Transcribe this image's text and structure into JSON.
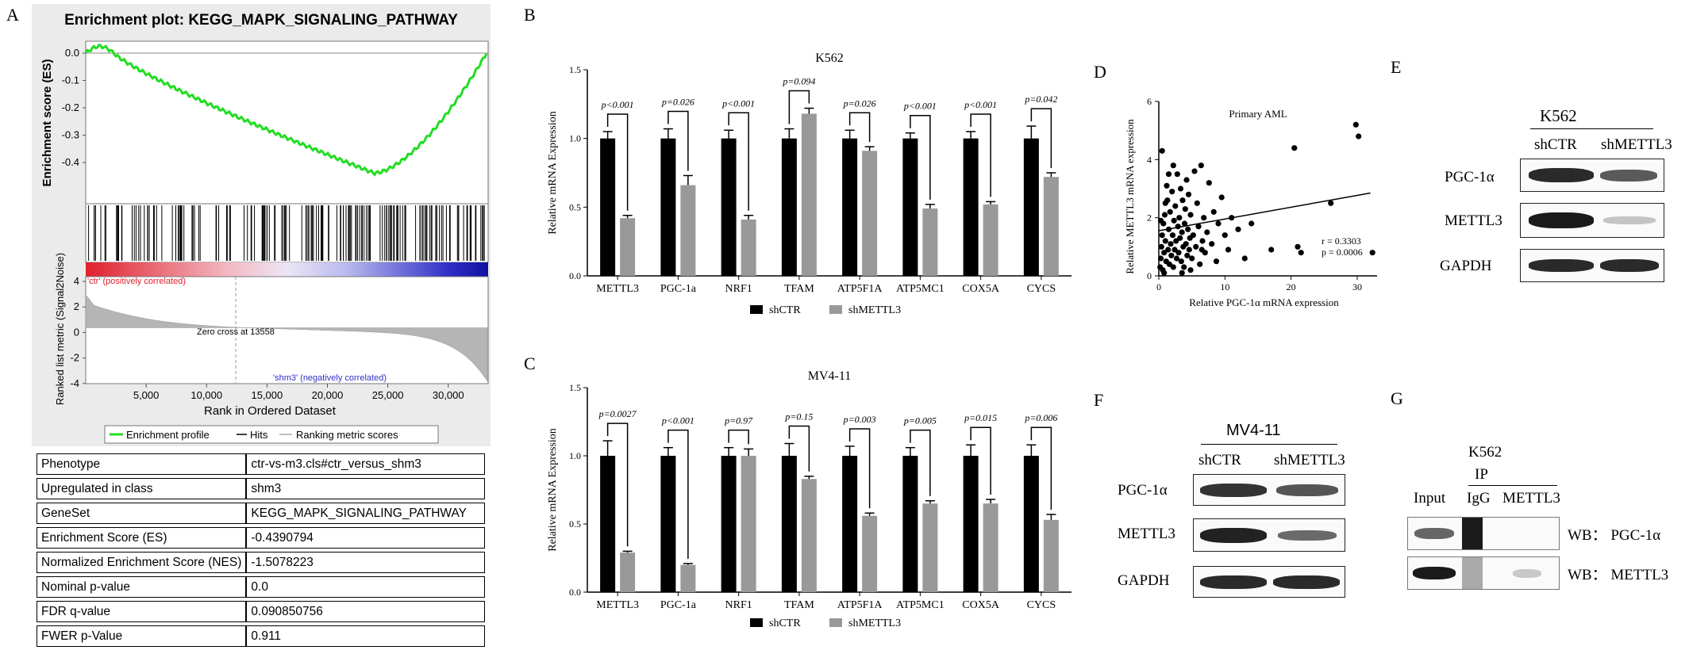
{
  "panel_letters": {
    "a": "A",
    "b": "B",
    "c": "C",
    "d": "D",
    "e": "E",
    "f": "F",
    "g": "G"
  },
  "panelA": {
    "title": "Enrichment plot: KEGG_MAPK_SIGNALING_PATHWAY",
    "es_ylabel": "Enrichment score (ES)",
    "es_ticks": [
      "0.0",
      "-0.1",
      "-0.2",
      "-0.3",
      "-0.4"
    ],
    "metric_ylabel": "Ranked list metric (Signal2Noise)",
    "metric_ticks": [
      "4",
      "2",
      "0",
      "-2",
      "-4"
    ],
    "pos_label": "'ctr' (positively correlated)",
    "neg_label": "'shm3' (negatively correlated)",
    "zero_cross": "Zero cross at 13558",
    "xticks": [
      "5,000",
      "10,000",
      "15,000",
      "20,000",
      "25,000",
      "30,000"
    ],
    "xlabel": "Rank in Ordered Dataset",
    "legend": [
      "Enrichment profile",
      "Hits",
      "Ranking metric scores"
    ],
    "colors": {
      "profile": "#22dd22",
      "red": "#e8303c",
      "blue": "#2a2acc"
    },
    "table": [
      [
        "Phenotype",
        "ctr-vs-m3.cls#ctr_versus_shm3"
      ],
      [
        "Upregulated in class",
        "shm3"
      ],
      [
        "GeneSet",
        "KEGG_MAPK_SIGNALING_PATHWAY"
      ],
      [
        "Enrichment Score (ES)",
        "-0.4390794"
      ],
      [
        "Normalized Enrichment Score (NES)",
        "-1.5078223"
      ],
      [
        "Nominal p-value",
        "0.0"
      ],
      [
        "FDR q-value",
        "0.090850756"
      ],
      [
        "FWER p-Value",
        "0.911"
      ]
    ]
  },
  "chart_data": [
    {
      "type": "bar",
      "title": "K562",
      "ylabel": "Relative mRNA Expression",
      "ylim": [
        0,
        1.5
      ],
      "yticks": [
        "0.0",
        "0.5",
        "1.0",
        "1.5"
      ],
      "categories": [
        "METTL3",
        "PGC-1a",
        "NRF1",
        "TFAM",
        "ATP5F1A",
        "ATP5MC1",
        "COX5A",
        "CYCS"
      ],
      "series": [
        {
          "name": "shCTR",
          "color": "#000000",
          "values": [
            1.0,
            1.0,
            1.0,
            1.0,
            1.0,
            1.0,
            1.0,
            1.0
          ],
          "err": [
            0.05,
            0.07,
            0.06,
            0.07,
            0.06,
            0.04,
            0.05,
            0.09
          ]
        },
        {
          "name": "shMETTL3",
          "color": "#999999",
          "values": [
            0.42,
            0.66,
            0.41,
            1.18,
            0.91,
            0.49,
            0.52,
            0.72
          ],
          "err": [
            0.02,
            0.07,
            0.03,
            0.04,
            0.03,
            0.03,
            0.02,
            0.03
          ]
        }
      ],
      "pvalues": [
        "p<0.001",
        "p=0.026",
        "p<0.001",
        "p=0.094",
        "p=0.026",
        "p<0.001",
        "p<0.001",
        "p=0.042"
      ]
    },
    {
      "type": "bar",
      "title": "MV4-11",
      "ylabel": "Relative mRNA Expression",
      "ylim": [
        0,
        1.5
      ],
      "yticks": [
        "0.0",
        "0.5",
        "1.0",
        "1.5"
      ],
      "categories": [
        "METTL3",
        "PGC-1a",
        "NRF1",
        "TFAM",
        "ATP5F1A",
        "ATP5MC1",
        "COX5A",
        "CYCS"
      ],
      "series": [
        {
          "name": "shCTR",
          "color": "#000000",
          "values": [
            1.0,
            1.0,
            1.0,
            1.0,
            1.0,
            1.0,
            1.0,
            1.0
          ],
          "err": [
            0.11,
            0.06,
            0.06,
            0.09,
            0.07,
            0.06,
            0.08,
            0.08
          ]
        },
        {
          "name": "shMETTL3",
          "color": "#999999",
          "values": [
            0.29,
            0.2,
            1.0,
            0.83,
            0.56,
            0.65,
            0.65,
            0.53
          ],
          "err": [
            0.01,
            0.01,
            0.05,
            0.02,
            0.02,
            0.02,
            0.03,
            0.04
          ]
        }
      ],
      "pvalues": [
        "p=0.0027",
        "p<0.001",
        "p=0.97",
        "p=0.15",
        "p=0.003",
        "p=0.005",
        "p=0.015",
        "p=0.006"
      ]
    },
    {
      "type": "scatter",
      "title": "Primary AML",
      "xlabel": "Relative PGC-1α mRNA expression",
      "ylabel": "Relative METTL3 mRNA expression",
      "xlim": [
        0,
        33
      ],
      "ylim": [
        0,
        6
      ],
      "xticks": [
        "0",
        "10",
        "20",
        "30"
      ],
      "yticks": [
        "0",
        "2",
        "4",
        "6"
      ],
      "stats": [
        "r = 0.3303",
        "p = 0.0006"
      ],
      "fit_line": [
        [
          0,
          1.55
        ],
        [
          32,
          2.85
        ]
      ],
      "points": [
        [
          0.2,
          0.3
        ],
        [
          0.3,
          0.6
        ],
        [
          0.4,
          1.0
        ],
        [
          0.5,
          1.4
        ],
        [
          0.6,
          0.2
        ],
        [
          0.7,
          1.8
        ],
        [
          0.8,
          0.8
        ],
        [
          0.9,
          2.1
        ],
        [
          1.0,
          1.2
        ],
        [
          1.1,
          0.5
        ],
        [
          1.2,
          3.1
        ],
        [
          1.3,
          2.6
        ],
        [
          1.4,
          0.9
        ],
        [
          1.5,
          1.6
        ],
        [
          1.6,
          0.4
        ],
        [
          1.7,
          2.2
        ],
        [
          1.8,
          1.1
        ],
        [
          1.9,
          0.7
        ],
        [
          2.0,
          2.9
        ],
        [
          2.1,
          1.4
        ],
        [
          2.2,
          0.3
        ],
        [
          2.3,
          1.9
        ],
        [
          2.4,
          0.9
        ],
        [
          2.5,
          2.4
        ],
        [
          2.6,
          1.2
        ],
        [
          2.7,
          0.6
        ],
        [
          2.8,
          3.5
        ],
        [
          2.9,
          1.7
        ],
        [
          3.0,
          0.8
        ],
        [
          3.1,
          2.0
        ],
        [
          3.2,
          1.3
        ],
        [
          3.3,
          3.0
        ],
        [
          3.4,
          0.5
        ],
        [
          3.5,
          1.5
        ],
        [
          3.6,
          2.6
        ],
        [
          3.7,
          1.0
        ],
        [
          3.8,
          0.3
        ],
        [
          3.9,
          1.8
        ],
        [
          4.0,
          2.3
        ],
        [
          4.1,
          1.1
        ],
        [
          4.2,
          3.3
        ],
        [
          4.3,
          0.7
        ],
        [
          4.4,
          1.6
        ],
        [
          4.5,
          2.8
        ],
        [
          4.6,
          0.9
        ],
        [
          4.7,
          1.3
        ],
        [
          4.8,
          2.1
        ],
        [
          5.0,
          0.6
        ],
        [
          5.2,
          1.4
        ],
        [
          5.4,
          3.6
        ],
        [
          5.6,
          1.0
        ],
        [
          5.8,
          2.5
        ],
        [
          6.0,
          1.7
        ],
        [
          6.2,
          0.4
        ],
        [
          6.4,
          3.8
        ],
        [
          6.6,
          1.2
        ],
        [
          6.8,
          2.0
        ],
        [
          7.0,
          0.8
        ],
        [
          7.3,
          1.5
        ],
        [
          7.6,
          3.2
        ],
        [
          8.0,
          1.1
        ],
        [
          8.3,
          2.2
        ],
        [
          8.7,
          0.5
        ],
        [
          9.0,
          1.8
        ],
        [
          9.5,
          2.7
        ],
        [
          10.0,
          1.4
        ],
        [
          10.5,
          0.9
        ],
        [
          11.0,
          2.0
        ],
        [
          12.0,
          1.6
        ],
        [
          13.0,
          0.6
        ],
        [
          14.0,
          1.8
        ],
        [
          17.0,
          0.9
        ],
        [
          20.5,
          4.4
        ],
        [
          21.0,
          1.0
        ],
        [
          21.5,
          0.8
        ],
        [
          26.0,
          2.5
        ],
        [
          29.8,
          5.2
        ],
        [
          30.2,
          4.8
        ],
        [
          32.3,
          0.8
        ],
        [
          0.5,
          4.3
        ],
        [
          1.0,
          2.5
        ],
        [
          1.5,
          3.5
        ],
        [
          2.2,
          3.8
        ],
        [
          0.3,
          1.9
        ],
        [
          0.8,
          0.1
        ],
        [
          3.5,
          0.1
        ],
        [
          4.8,
          0.2
        ],
        [
          6.5,
          0.9
        ]
      ]
    }
  ],
  "panelE": {
    "cell": "K562",
    "lanes": [
      "shCTR",
      "shMETTL3"
    ],
    "rows": [
      "PGC-1α",
      "METTL3",
      "GAPDH"
    ]
  },
  "panelF": {
    "cell": "MV4-11",
    "lanes": [
      "shCTR",
      "shMETTL3"
    ],
    "rows": [
      "PGC-1α",
      "METTL3",
      "GAPDH"
    ]
  },
  "panelG": {
    "cell": "K562",
    "ip": "IP",
    "lanes": [
      "Input",
      "IgG",
      "METTL3"
    ],
    "rows": [
      "WB： PGC-1α",
      "WB： METTL3"
    ]
  }
}
